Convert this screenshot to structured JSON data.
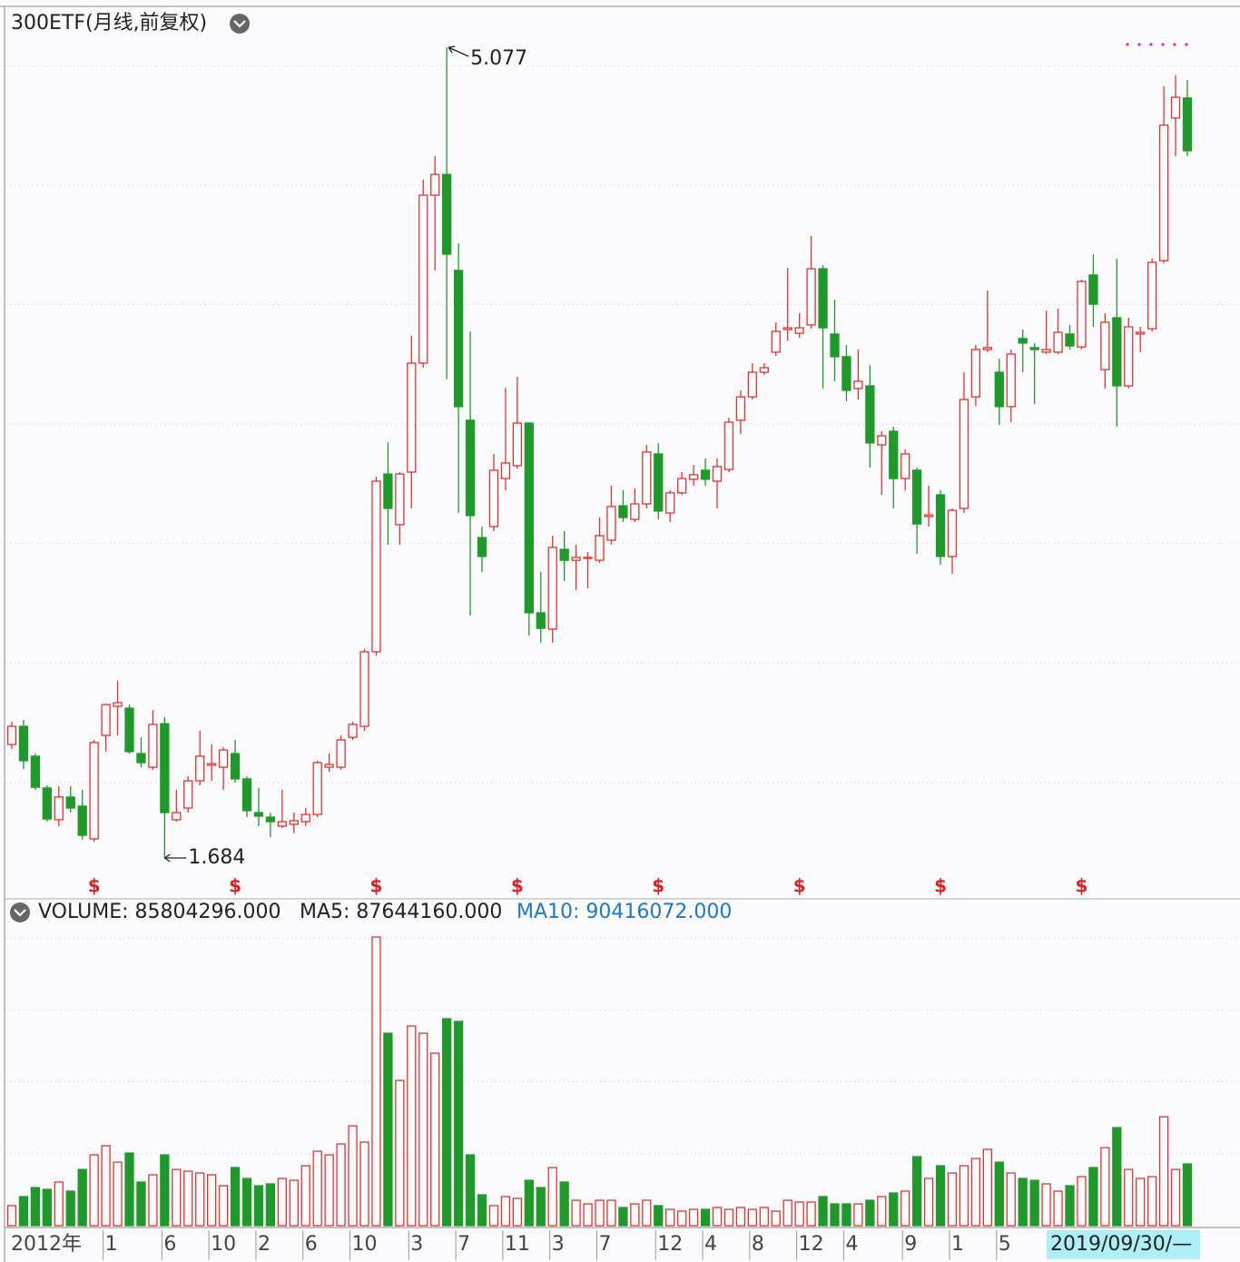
{
  "header": {
    "title": "300ETF(月线,前复权)"
  },
  "chart_data": {
    "type": "candlestick",
    "open": [
      2.159,
      2.235,
      2.11,
      1.977,
      1.844,
      1.939,
      1.901,
      1.764,
      2.197,
      2.319,
      2.311,
      2.121,
      2.064,
      2.246,
      1.844,
      1.893,
      2.007,
      2.072,
      2.064,
      2.121,
      2.015,
      1.874,
      1.855,
      1.817,
      1.825,
      1.836,
      1.866,
      2.064,
      2.064,
      2.189,
      2.235,
      2.547,
      3.291,
      3.079,
      3.299,
      3.755,
      4.458,
      4.545,
      4.143,
      3.516,
      3.025,
      3.071,
      3.272,
      3.326,
      3.504,
      2.71,
      2.642,
      2.976,
      2.93,
      2.938,
      2.93,
      3.014,
      3.158,
      3.101,
      3.166,
      3.375,
      3.128,
      3.212,
      3.269,
      3.307,
      3.261,
      3.31,
      3.516,
      3.614,
      3.717,
      3.801,
      3.896,
      3.88,
      3.915,
      4.15,
      3.877,
      3.782,
      3.649,
      3.66,
      3.413,
      3.47,
      3.272,
      3.307,
      3.113,
      3.204,
      2.946,
      3.147,
      3.614,
      3.812,
      3.717,
      3.573,
      3.858,
      3.82,
      3.801,
      3.801,
      3.877,
      3.823,
      4.124,
      3.728,
      3.945,
      3.66,
      3.877,
      3.899,
      4.184,
      4.781,
      4.865
    ],
    "high": [
      2.254,
      2.262,
      2.121,
      1.988,
      1.984,
      1.984,
      1.969,
      2.178,
      2.33,
      2.425,
      2.326,
      2.189,
      2.303,
      2.273,
      1.969,
      2.026,
      2.216,
      2.159,
      2.148,
      2.178,
      2.026,
      1.977,
      1.874,
      1.969,
      1.874,
      1.893,
      2.091,
      2.121,
      2.197,
      2.254,
      2.558,
      3.28,
      3.424,
      3.299,
      3.869,
      4.523,
      4.621,
      5.077,
      4.257,
      3.888,
      3.071,
      3.375,
      3.652,
      3.698,
      3.508,
      2.881,
      3.033,
      3.052,
      2.995,
      2.965,
      3.109,
      3.242,
      3.223,
      3.231,
      3.413,
      3.421,
      3.223,
      3.299,
      3.329,
      3.356,
      3.356,
      3.527,
      3.641,
      3.755,
      3.755,
      3.926,
      4.154,
      3.964,
      4.287,
      4.165,
      4.021,
      3.831,
      3.812,
      3.747,
      3.47,
      3.489,
      3.394,
      3.318,
      3.242,
      3.223,
      3.147,
      3.717,
      3.831,
      4.059,
      3.774,
      3.812,
      3.896,
      3.839,
      3.975,
      3.983,
      3.915,
      4.105,
      4.211,
      3.964,
      4.192,
      3.945,
      3.907,
      4.192,
      4.914,
      4.96,
      4.941
    ],
    "low": [
      2.14,
      2.056,
      1.969,
      1.836,
      1.817,
      1.874,
      1.76,
      1.752,
      2.129,
      2.197,
      2.121,
      2.064,
      2.053,
      1.684,
      1.836,
      1.874,
      1.988,
      2.007,
      1.969,
      1.999,
      1.855,
      1.817,
      1.771,
      1.809,
      1.787,
      1.817,
      1.855,
      2.045,
      2.053,
      2.178,
      2.216,
      2.531,
      2.995,
      2.995,
      3.147,
      3.736,
      4.143,
      3.687,
      3.128,
      2.699,
      2.881,
      3.052,
      3.223,
      3.314,
      2.615,
      2.585,
      2.585,
      2.843,
      2.805,
      2.813,
      2.919,
      2.995,
      3.09,
      3.09,
      3.147,
      3.101,
      3.09,
      3.204,
      3.242,
      3.242,
      3.147,
      3.299,
      3.459,
      3.603,
      3.706,
      3.785,
      3.85,
      3.861,
      3.899,
      3.649,
      3.679,
      3.595,
      3.603,
      3.318,
      3.204,
      3.147,
      3.223,
      2.957,
      3.071,
      2.911,
      2.873,
      3.128,
      3.576,
      3.801,
      3.497,
      3.508,
      3.717,
      3.584,
      3.793,
      3.793,
      3.812,
      3.812,
      3.907,
      3.649,
      3.489,
      3.649,
      3.801,
      3.888,
      4.173,
      4.621,
      4.621
    ],
    "close": [
      2.235,
      2.091,
      1.98,
      1.847,
      1.939,
      1.893,
      1.779,
      2.167,
      2.326,
      2.334,
      2.129,
      2.083,
      2.243,
      1.874,
      1.874,
      2.007,
      2.11,
      2.079,
      2.136,
      2.015,
      1.882,
      1.859,
      1.836,
      1.836,
      1.84,
      1.866,
      2.083,
      2.075,
      2.178,
      2.243,
      2.547,
      3.261,
      3.147,
      3.291,
      3.755,
      4.458,
      4.545,
      4.211,
      3.573,
      3.117,
      2.946,
      3.307,
      3.337,
      3.504,
      2.71,
      2.645,
      2.984,
      2.93,
      2.942,
      2.942,
      3.033,
      3.155,
      3.109,
      3.166,
      3.383,
      3.136,
      3.212,
      3.272,
      3.288,
      3.269,
      3.322,
      3.508,
      3.614,
      3.717,
      3.736,
      3.888,
      3.903,
      3.903,
      4.15,
      3.903,
      3.782,
      3.641,
      3.679,
      3.421,
      3.451,
      3.272,
      3.375,
      3.082,
      3.12,
      2.946,
      3.139,
      3.603,
      3.812,
      3.82,
      3.573,
      3.793,
      3.839,
      3.812,
      3.812,
      3.884,
      3.827,
      4.097,
      4.002,
      3.926,
      3.66,
      3.907,
      3.884,
      4.177,
      4.751,
      4.868,
      4.644
    ],
    "up_color": "#e5312e",
    "down_color": "#1f9a2a",
    "ylim": [
      1.513,
      5.237
    ],
    "ygrid": [
      2,
      2.5,
      3,
      3.5,
      4,
      4.5,
      5
    ],
    "annotations": [
      {
        "index": 37,
        "value": 5.077,
        "label": "5.077"
      },
      {
        "index": 13,
        "value": 1.684,
        "label": "1.684"
      }
    ],
    "dividend_symbol": "$",
    "dividend_months": [
      7,
      19,
      31,
      43,
      55,
      67,
      79,
      91
    ],
    "volume": {
      "legend": [
        "VOLUME: 85804296.000",
        "MA5: 87644160.000",
        "MA10: 90416072.000"
      ],
      "values": [
        27800000.0,
        40400000.0,
        53000000.0,
        50500000.0,
        60600000.0,
        48000000.0,
        78200000.0,
        98400000.0,
        111100000.0,
        88300000.0,
        101000000.0,
        60600000.0,
        70700000.0,
        98400000.0,
        78200000.0,
        75700000.0,
        73200000.0,
        70700000.0,
        55500000.0,
        80800000.0,
        65600000.0,
        55500000.0,
        58100000.0,
        65600000.0,
        63100000.0,
        83300000.0,
        103500000.0,
        98400000.0,
        113600000.0,
        138800000.0,
        116100000.0,
        401300000.0,
        267500000.0,
        201900000.0,
        277600000.0,
        267500000.0,
        239800000.0,
        287700000.0,
        284000000.0,
        98400000.0,
        42900000.0,
        27800000.0,
        40400000.0,
        37900000.0,
        63100000.0,
        53000000.0,
        80800000.0,
        60600000.0,
        35300000.0,
        30300000.0,
        35300000.0,
        35300000.0,
        25200000.0,
        30300000.0,
        35300000.0,
        27800000.0,
        22700000.0,
        20200000.0,
        22700000.0,
        22700000.0,
        25200000.0,
        22700000.0,
        25200000.0,
        22700000.0,
        25200000.0,
        20200000.0,
        35300000.0,
        32800000.0,
        32800000.0,
        40400000.0,
        30300000.0,
        30300000.0,
        30300000.0,
        35300000.0,
        40400000.0,
        45400000.0,
        48000000.0,
        95900000.0,
        65600000.0,
        83300000.0,
        73200000.0,
        83300000.0,
        93400000.0,
        106000000.0,
        88300000.0,
        73200000.0,
        65600000.0,
        63100000.0,
        58100000.0,
        48000000.0,
        55500000.0,
        68100000.0,
        80800000.0,
        108500000.0,
        136300000.0,
        78200000.0,
        65600000.0,
        68100000.0,
        151400000.0,
        78200000.0,
        85804296
      ],
      "vlim": [
        0,
        416500000.0
      ],
      "vgrid": [
        100000000,
        200000000,
        300000000,
        400000000
      ]
    },
    "xlabels": [
      {
        "index": 0,
        "label": "2012年"
      },
      {
        "index": 8,
        "label": "1"
      },
      {
        "index": 13,
        "label": "6"
      },
      {
        "index": 17,
        "label": "10"
      },
      {
        "index": 21,
        "label": "2"
      },
      {
        "index": 25,
        "label": "6"
      },
      {
        "index": 29,
        "label": "10"
      },
      {
        "index": 34,
        "label": "3"
      },
      {
        "index": 38,
        "label": "7"
      },
      {
        "index": 42,
        "label": "11"
      },
      {
        "index": 46,
        "label": "3"
      },
      {
        "index": 50,
        "label": "7"
      },
      {
        "index": 55,
        "label": "12"
      },
      {
        "index": 59,
        "label": "4"
      },
      {
        "index": 63,
        "label": "8"
      },
      {
        "index": 67,
        "label": "12"
      },
      {
        "index": 71,
        "label": "4"
      },
      {
        "index": 76,
        "label": "9"
      },
      {
        "index": 80,
        "label": "1"
      },
      {
        "index": 84,
        "label": "5"
      }
    ],
    "cursor_label": "2019/09/30/—"
  }
}
